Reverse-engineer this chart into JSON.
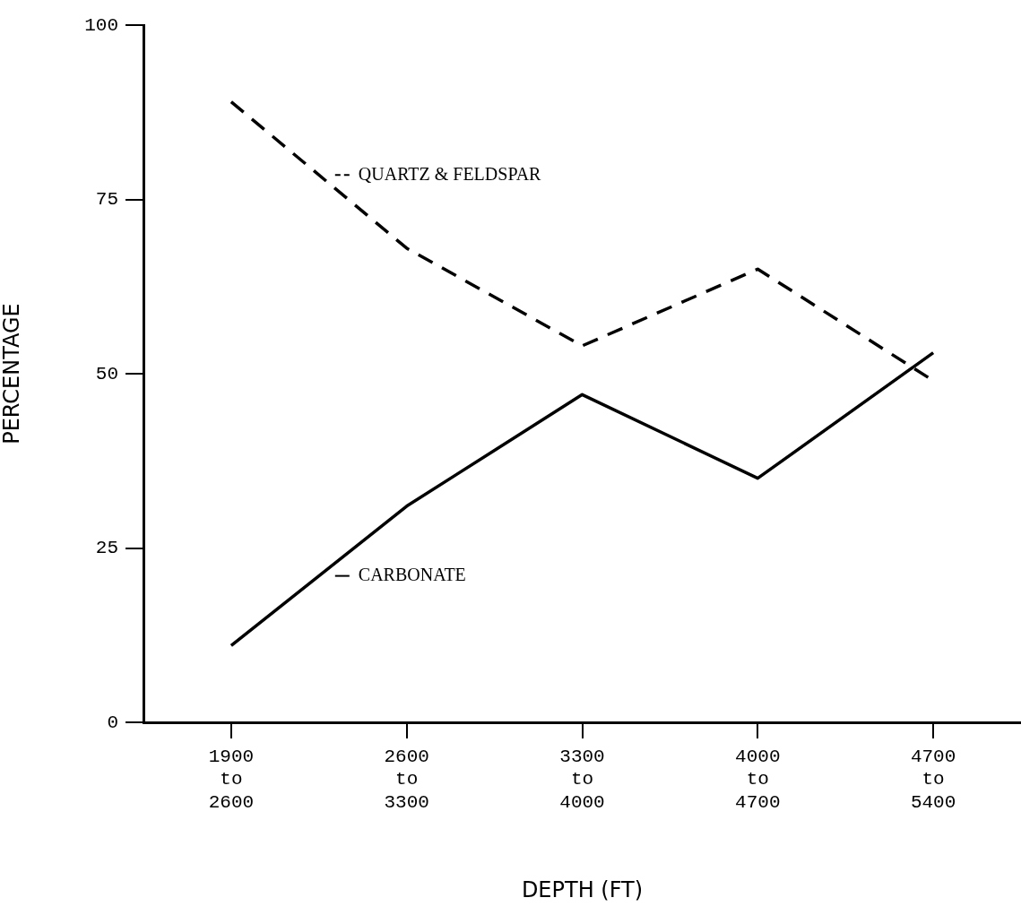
{
  "chart_data": {
    "type": "line",
    "xlabel": "DEPTH (FT)",
    "ylabel": "PERCENTAGE",
    "categories": [
      "1900 to 2600",
      "2600 to 3300",
      "3300 to 4000",
      "4000 to 4700",
      "4700 to 5400"
    ],
    "series": [
      {
        "name": "QUARTZ & FELDSPAR",
        "color": "#000000",
        "line_style": "dashed",
        "values": [
          89,
          68,
          54,
          65,
          49
        ]
      },
      {
        "name": "CARBONATE",
        "color": "#000000",
        "line_style": "solid",
        "values": [
          11,
          31,
          47,
          35,
          53
        ]
      }
    ],
    "ylim": [
      0,
      100
    ],
    "yticks": [
      0,
      25,
      50,
      75,
      100
    ],
    "marker": "none",
    "legend": "left"
  }
}
